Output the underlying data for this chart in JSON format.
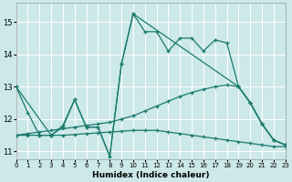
{
  "xlabel": "Humidex (Indice chaleur)",
  "bg_color": "#cce8e8",
  "grid_color": "#ffffff",
  "line_color": "#1a7a6e",
  "xlim": [
    0,
    23
  ],
  "ylim": [
    10.75,
    15.6
  ],
  "yticks": [
    11,
    12,
    13,
    14,
    15
  ],
  "xticks": [
    0,
    1,
    2,
    3,
    4,
    5,
    6,
    7,
    8,
    9,
    10,
    11,
    12,
    13,
    14,
    15,
    16,
    17,
    18,
    19,
    20,
    21,
    22,
    23
  ],
  "series": [
    {
      "x": [
        0,
        1,
        2,
        3,
        4,
        5,
        6,
        7,
        8,
        9,
        10,
        11,
        12,
        13,
        14,
        15,
        16,
        17,
        18,
        19,
        20,
        21,
        22,
        23
      ],
      "y": [
        13.0,
        12.2,
        11.5,
        11.5,
        11.8,
        12.6,
        11.75,
        11.75,
        10.85,
        13.7,
        15.25,
        14.7,
        14.7,
        14.1,
        14.5,
        14.5,
        14.1,
        14.45,
        14.35,
        13.0,
        12.5,
        11.85,
        11.35,
        11.2
      ]
    },
    {
      "x": [
        0,
        1,
        2,
        3,
        4,
        5,
        6,
        7,
        8,
        9,
        10,
        11,
        12,
        13,
        14,
        15,
        16,
        17,
        18,
        19,
        20,
        21,
        22,
        23
      ],
      "y": [
        11.5,
        11.55,
        11.6,
        11.65,
        11.7,
        11.75,
        11.8,
        11.85,
        11.9,
        12.0,
        12.1,
        12.25,
        12.4,
        12.55,
        12.7,
        12.82,
        12.92,
        13.0,
        13.05,
        13.0,
        12.5,
        11.85,
        11.35,
        11.2
      ]
    },
    {
      "x": [
        0,
        1,
        2,
        3,
        4,
        5,
        6,
        7,
        8,
        9,
        10,
        11,
        12,
        13,
        14,
        15,
        16,
        17,
        18,
        19,
        20,
        21,
        22,
        23
      ],
      "y": [
        11.5,
        11.5,
        11.5,
        11.5,
        11.5,
        11.52,
        11.55,
        11.57,
        11.6,
        11.62,
        11.65,
        11.65,
        11.65,
        11.6,
        11.55,
        11.5,
        11.45,
        11.4,
        11.35,
        11.3,
        11.25,
        11.2,
        11.15,
        11.15
      ]
    },
    {
      "x": [
        0,
        3,
        4,
        5,
        6,
        7,
        8,
        9,
        10,
        19,
        20,
        21,
        22,
        23
      ],
      "y": [
        13.0,
        11.5,
        11.75,
        12.6,
        11.75,
        11.75,
        10.85,
        13.7,
        15.25,
        13.0,
        12.5,
        11.85,
        11.35,
        11.2
      ]
    }
  ]
}
